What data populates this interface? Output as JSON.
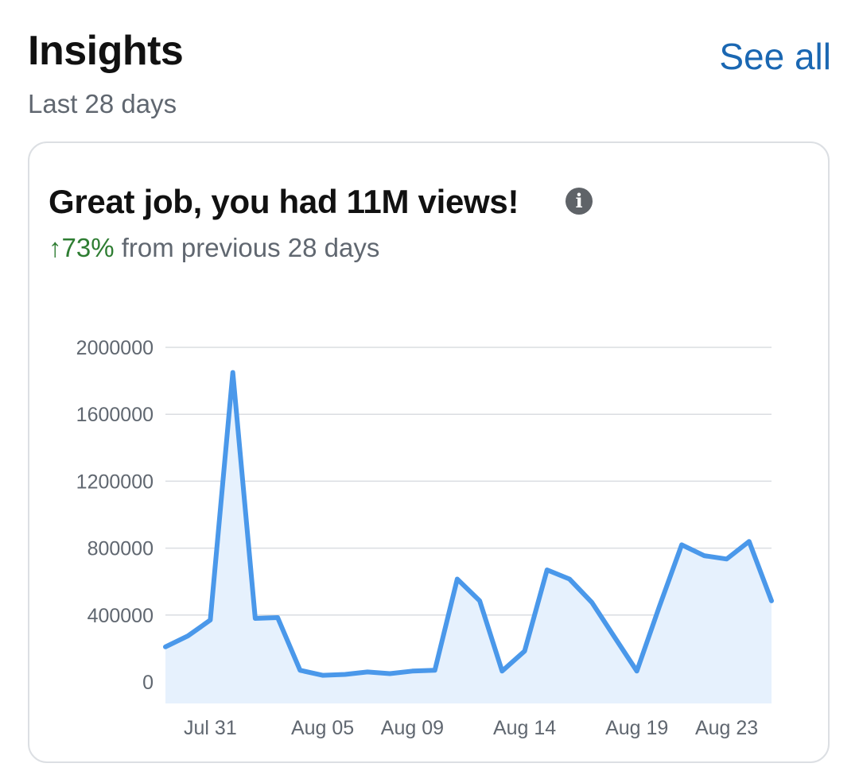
{
  "header": {
    "title": "Insights",
    "see_all_label": "See all",
    "period": "Last 28 days"
  },
  "card": {
    "title": "Great job, you had 11M views!",
    "info_icon": "info-icon",
    "change_arrow": "↑",
    "change_percent": "73%",
    "change_text": " from previous 28 days"
  },
  "colors": {
    "line": "#4a98ea",
    "area": "#e6f1fd",
    "link": "#1a67b2",
    "positive": "#2e7d32"
  },
  "chart_data": {
    "type": "area",
    "x": [
      "Jul 29",
      "Jul 30",
      "Jul 31",
      "Aug 01",
      "Aug 02",
      "Aug 03",
      "Aug 04",
      "Aug 05",
      "Aug 06",
      "Aug 07",
      "Aug 08",
      "Aug 09",
      "Aug 10",
      "Aug 11",
      "Aug 12",
      "Aug 13",
      "Aug 14",
      "Aug 15",
      "Aug 16",
      "Aug 17",
      "Aug 18",
      "Aug 19",
      "Aug 20",
      "Aug 21",
      "Aug 22",
      "Aug 23",
      "Aug 24",
      "Aug 25"
    ],
    "values": [
      210000,
      275000,
      370000,
      1850000,
      380000,
      385000,
      70000,
      40000,
      45000,
      60000,
      50000,
      65000,
      70000,
      615000,
      485000,
      65000,
      185000,
      670000,
      615000,
      475000,
      270000,
      65000,
      450000,
      820000,
      755000,
      735000,
      840000,
      485000
    ],
    "x_tick_labels": [
      "Jul 31",
      "Aug 05",
      "Aug 09",
      "Aug 14",
      "Aug 19",
      "Aug 23"
    ],
    "y_tick_labels": [
      "0",
      "400000",
      "800000",
      "1200000",
      "1600000",
      "2000000"
    ],
    "ylim": [
      0,
      2000000
    ],
    "grid": true,
    "xlabel": "",
    "ylabel": ""
  }
}
